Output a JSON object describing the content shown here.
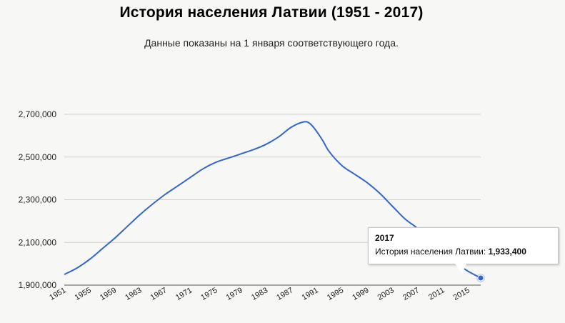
{
  "chart_data": {
    "type": "line",
    "title": "История населения Латвии (1951 - 2017)",
    "subtitle": "Данные показаны на 1 января соответствующего года.",
    "ylim": [
      1900000,
      2700000
    ],
    "yticks": [
      1900000,
      2100000,
      2300000,
      2500000,
      2700000
    ],
    "ytick_labels": [
      "1,900,000",
      "2,100,000",
      "2,300,000",
      "2,500,000",
      "2,700,000"
    ],
    "xlim": [
      1951,
      2017
    ],
    "xticks": [
      1951,
      1955,
      1959,
      1963,
      1967,
      1971,
      1975,
      1979,
      1983,
      1987,
      1991,
      1995,
      1999,
      2003,
      2007,
      2011,
      2015
    ],
    "grid": true,
    "series": [
      {
        "name": "История населения Латвии",
        "color": "#3366cc",
        "x": [
          1951,
          1953,
          1955,
          1957,
          1959,
          1961,
          1963,
          1965,
          1967,
          1969,
          1971,
          1973,
          1975,
          1977,
          1979,
          1981,
          1983,
          1985,
          1987,
          1989,
          1990,
          1991,
          1992,
          1993,
          1995,
          1997,
          1999,
          2001,
          2003,
          2005,
          2007,
          2009,
          2011,
          2013,
          2015,
          2017
        ],
        "y": [
          1950000,
          1980000,
          2020000,
          2070000,
          2120000,
          2175000,
          2230000,
          2280000,
          2325000,
          2365000,
          2405000,
          2445000,
          2475000,
          2495000,
          2515000,
          2535000,
          2560000,
          2595000,
          2640000,
          2665000,
          2655000,
          2620000,
          2575000,
          2525000,
          2460000,
          2420000,
          2380000,
          2330000,
          2270000,
          2210000,
          2165000,
          2105000,
          2050000,
          2005000,
          1965000,
          1933400
        ]
      }
    ],
    "tooltip": {
      "year": "2017",
      "label": "История населения Латвии: ",
      "value": "1,933,400"
    }
  }
}
